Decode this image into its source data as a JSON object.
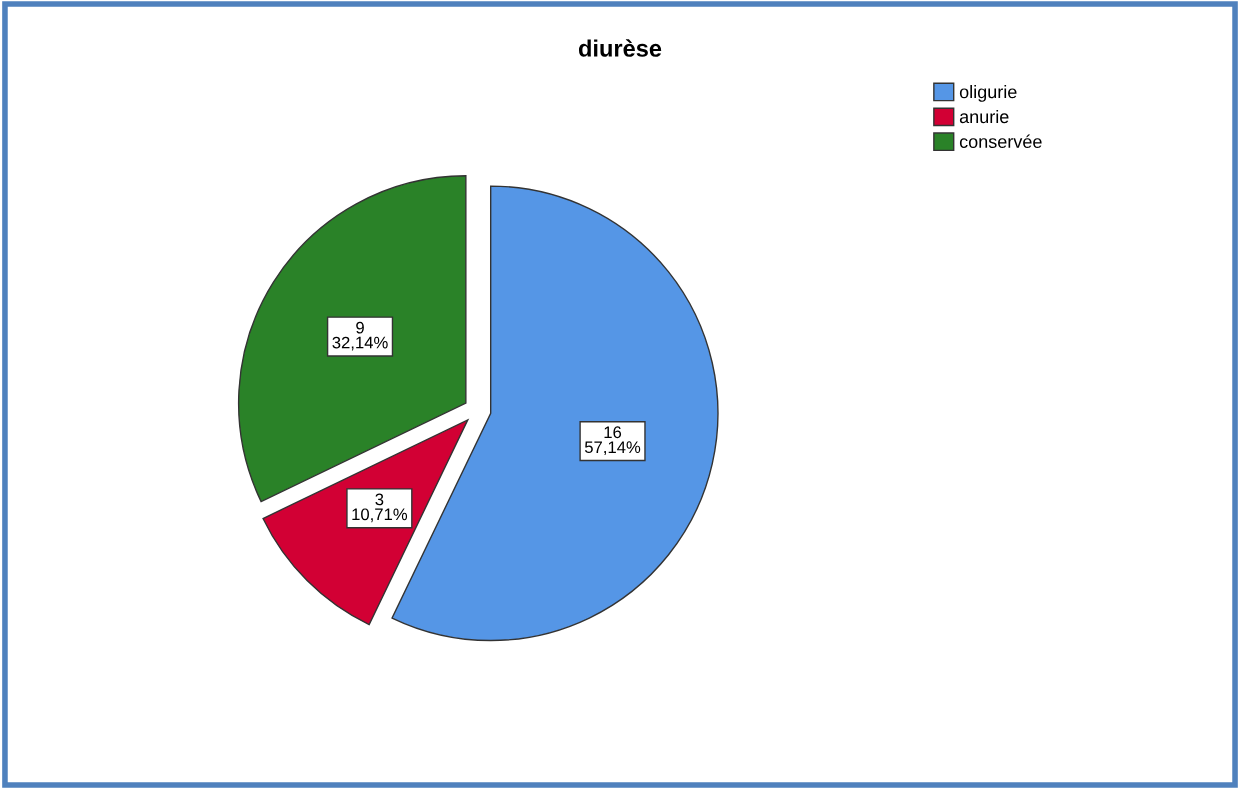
{
  "chart_data": {
    "type": "pie",
    "title": "diurèse",
    "categories": [
      "oligurie",
      "anurie",
      "conservée"
    ],
    "values": [
      16,
      3,
      9
    ],
    "value_labels": [
      "16\n57,14%",
      "3\n10,71%",
      "9\n32,14%"
    ],
    "colors": [
      "#5596e6",
      "#d20034",
      "#2a8228"
    ],
    "legend": "top right"
  }
}
